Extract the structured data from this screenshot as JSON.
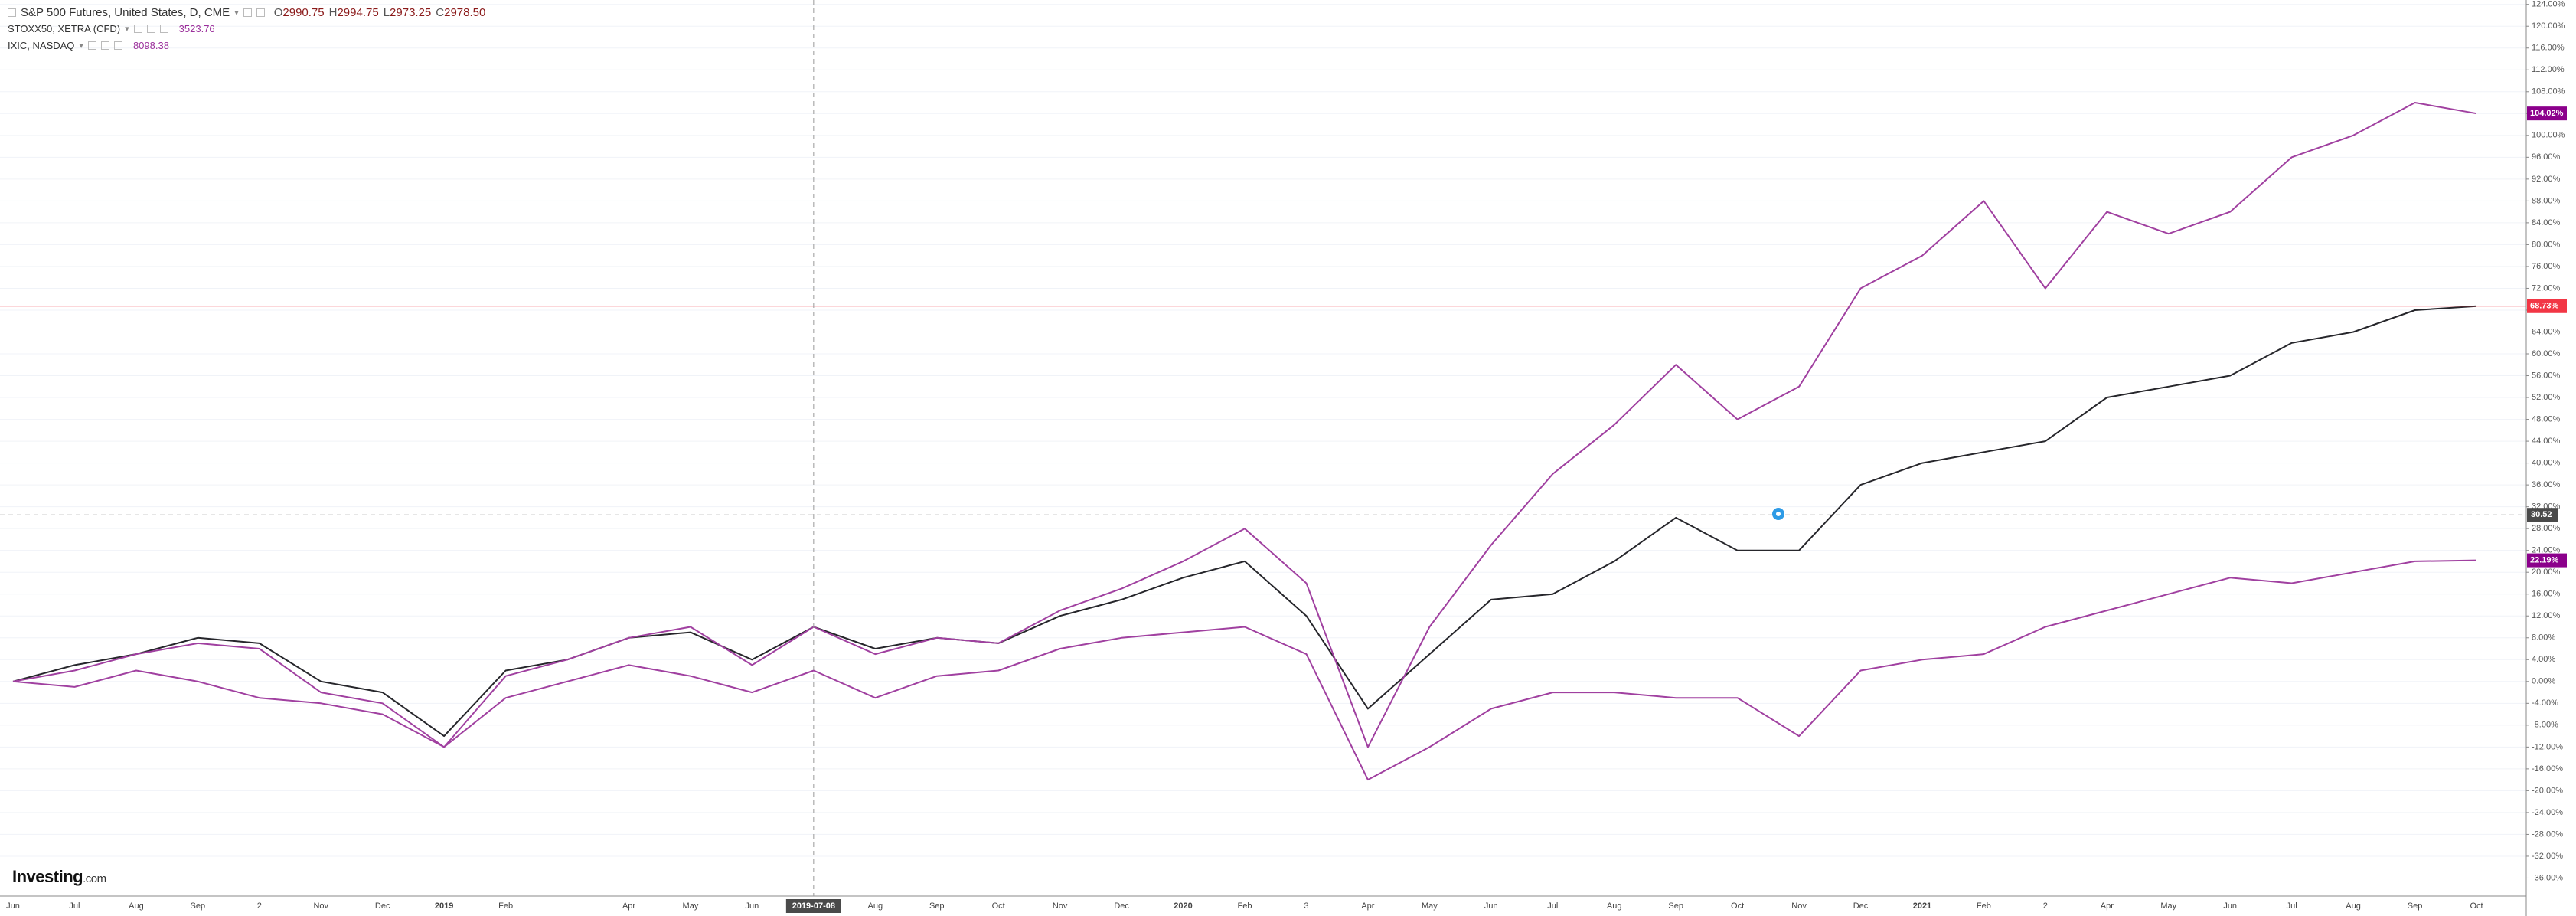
{
  "chart_data": {
    "type": "line",
    "header_values": [
      {
        "key": "O",
        "value": "2990.75"
      },
      {
        "key": "H",
        "value": "2994.75"
      },
      {
        "key": "L",
        "value": "2973.25"
      },
      {
        "key": "C",
        "value": "2978.50"
      }
    ],
    "logo": [
      "Investing",
      ".com"
    ],
    "categories": [
      "Jun",
      "Jul",
      "Aug",
      "Sep",
      "2",
      "Nov",
      "Dec",
      "2019",
      "Feb",
      null,
      "Apr",
      "May",
      "Jun",
      "2019-07-08",
      "Aug",
      "Sep",
      "Oct",
      "Nov",
      "Dec",
      "2020",
      "Feb",
      "3",
      "Apr",
      "May",
      "Jun",
      "Jul",
      "Aug",
      "Sep",
      "Oct",
      "Nov",
      "Dec",
      "2021",
      "Feb",
      "2",
      "Apr",
      "May",
      "Jun",
      "Jul",
      "Aug",
      "Sep",
      "Oct"
    ],
    "series": [
      {
        "name": "S&P 500 Futures, United States, D, CME",
        "color": "#26262b",
        "last_color": "#f23645",
        "values": [
          0,
          3,
          5,
          8,
          7,
          0,
          -2,
          -10,
          2,
          4,
          8,
          9,
          4,
          10,
          6,
          8,
          7,
          12,
          15,
          19,
          22,
          12,
          -5,
          5,
          15,
          16,
          22,
          30,
          24,
          24,
          36,
          40,
          42,
          44,
          52,
          54,
          56,
          62,
          64,
          68,
          68.73
        ],
        "last_label": "68.73%"
      },
      {
        "name": "STOXX50, XETRA (CFD)",
        "color": "#a040a0",
        "last_color": "#8b008b",
        "quote": "3523.76",
        "values": [
          0,
          -1,
          2,
          0,
          -3,
          -4,
          -6,
          -12,
          -3,
          0,
          3,
          1,
          -2,
          2,
          -3,
          1,
          2,
          6,
          8,
          9,
          10,
          5,
          -18,
          -12,
          -5,
          -2,
          -2,
          -3,
          -3,
          -10,
          2,
          4,
          5,
          10,
          13,
          16,
          19,
          18,
          20,
          22,
          22.19
        ],
        "last_label": "22.19%"
      },
      {
        "name": "IXIC, NASDAQ",
        "color": "#a040a0",
        "last_color": "#8b008b",
        "quote": "8098.38",
        "values": [
          0,
          2,
          5,
          7,
          6,
          -2,
          -4,
          -12,
          1,
          4,
          8,
          10,
          3,
          10,
          5,
          8,
          7,
          13,
          17,
          22,
          28,
          18,
          -12,
          10,
          25,
          38,
          47,
          58,
          48,
          54,
          72,
          78,
          88,
          72,
          86,
          82,
          86,
          96,
          100,
          106,
          104.02
        ],
        "last_label": "104.02%"
      }
    ],
    "crosshair": {
      "y": 30.52,
      "label": "30.52"
    },
    "ylim": [
      -39.3,
      124.8
    ],
    "yticks": [
      {
        "value": 124,
        "label": "124.00%"
      },
      {
        "value": 120,
        "label": "120.00%"
      },
      {
        "value": 116,
        "label": "116.00%"
      },
      {
        "value": 112,
        "label": "112.00%"
      },
      {
        "value": 108,
        "label": "108.00%"
      },
      {
        "value": 104,
        "label": "104.00%"
      },
      {
        "value": 100,
        "label": "100.00%"
      },
      {
        "value": 96,
        "label": "96.00%"
      },
      {
        "value": 92,
        "label": "92.00%"
      },
      {
        "value": 88,
        "label": "88.00%"
      },
      {
        "value": 84,
        "label": "84.00%"
      },
      {
        "value": 80,
        "label": "80.00%"
      },
      {
        "value": 76,
        "label": "76.00%"
      },
      {
        "value": 72,
        "label": "72.00%"
      },
      {
        "value": 68,
        "label": "68.00%"
      },
      {
        "value": 64,
        "label": "64.00%"
      },
      {
        "value": 60,
        "label": "60.00%"
      },
      {
        "value": 56,
        "label": "56.00%"
      },
      {
        "value": 52,
        "label": "52.00%"
      },
      {
        "value": 48,
        "label": "48.00%"
      },
      {
        "value": 44,
        "label": "44.00%"
      },
      {
        "value": 40,
        "label": "40.00%"
      },
      {
        "value": 36,
        "label": "36.00%"
      },
      {
        "value": 32,
        "label": "32.00%"
      },
      {
        "value": 28,
        "label": "28.00%"
      },
      {
        "value": 24,
        "label": "24.00%"
      },
      {
        "value": 20,
        "label": "20.00%"
      },
      {
        "value": 16,
        "label": "16.00%"
      },
      {
        "value": 12,
        "label": "12.00%"
      },
      {
        "value": 8,
        "label": "8.00%"
      },
      {
        "value": 4,
        "label": "4.00%"
      },
      {
        "value": 0,
        "label": "0.00%"
      },
      {
        "value": -4,
        "label": "-4.00%"
      },
      {
        "value": -8,
        "label": "-8.00%"
      },
      {
        "value": -12,
        "label": "-12.00%"
      },
      {
        "value": -16,
        "label": "-16.00%"
      },
      {
        "value": -20,
        "label": "-20.00%"
      },
      {
        "value": -24,
        "label": "-24.00%"
      },
      {
        "value": -28,
        "label": "-28.00%"
      },
      {
        "value": -32,
        "label": "-32.00%"
      },
      {
        "value": -36,
        "label": "-36.00%"
      }
    ],
    "grid": true
  }
}
